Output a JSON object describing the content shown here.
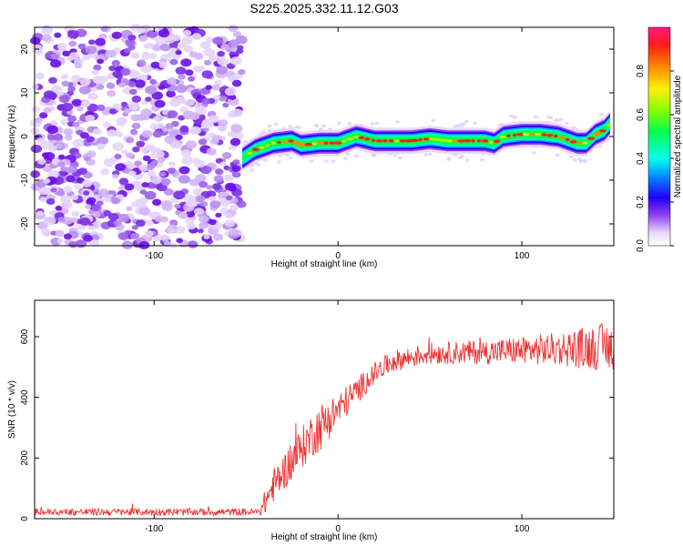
{
  "chart_data": [
    {
      "type": "heatmap",
      "title": "S225.2025.332.11.12.G03",
      "xlabel": "Height of straight line (km)",
      "ylabel": "Frequency (Hz)",
      "xlim": [
        -165,
        150
      ],
      "ylim": [
        -25,
        25
      ],
      "xticks": [
        -100,
        0,
        100
      ],
      "yticks": [
        -20,
        -10,
        0,
        10,
        20
      ],
      "colorbar": {
        "label": "Normalized spectral amplitude",
        "range": [
          0.0,
          1.0
        ],
        "ticks": [
          "0.0",
          "0.2",
          "0.4",
          "0.6",
          "0.8"
        ]
      },
      "noise_region_x": [
        -165,
        -52
      ],
      "ridge_centerline": {
        "x": [
          -52,
          -45,
          -35,
          -25,
          -20,
          -10,
          0,
          10,
          20,
          30,
          40,
          50,
          60,
          70,
          80,
          85,
          90,
          100,
          110,
          120,
          130,
          135,
          140,
          145,
          148
        ],
        "y": [
          -5,
          -3,
          -1.5,
          -1,
          -2,
          -1.5,
          -1.5,
          0,
          -1,
          -1,
          -1,
          -0.5,
          -1,
          -1,
          -1,
          -1.5,
          0,
          0.5,
          0.5,
          0,
          -1.5,
          -1.5,
          0.5,
          1.5,
          3
        ]
      }
    },
    {
      "type": "line",
      "xlabel": "Height of straight line (km)",
      "ylabel": "SNR (10 * v/v)",
      "xlim": [
        -165,
        150
      ],
      "ylim": [
        0,
        720
      ],
      "xticks": [
        -100,
        0,
        100
      ],
      "yticks": [
        0,
        200,
        400,
        600
      ],
      "series": [
        {
          "name": "SNR",
          "color": "#ee3333",
          "envelope_x": [
            -165,
            -42,
            -40,
            -35,
            -30,
            -25,
            -20,
            -15,
            -10,
            -5,
            0,
            10,
            20,
            30,
            50,
            80,
            100,
            120,
            140,
            150
          ],
          "envelope_y": [
            22,
            22,
            50,
            110,
            150,
            190,
            230,
            270,
            300,
            330,
            360,
            420,
            480,
            520,
            545,
            550,
            555,
            560,
            565,
            570
          ],
          "noise_amplitude": [
            12,
            12,
            40,
            55,
            60,
            65,
            70,
            70,
            80,
            70,
            55,
            45,
            35,
            35,
            35,
            40,
            45,
            55,
            75,
            85
          ]
        }
      ]
    }
  ]
}
